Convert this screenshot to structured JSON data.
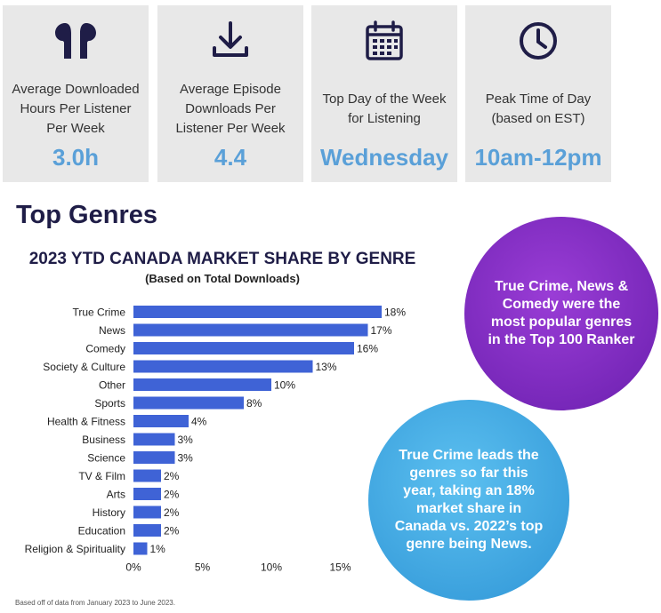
{
  "stats": [
    {
      "icon": "earbuds-icon",
      "label": "Average Downloaded Hours Per Listener Per Week",
      "value": "3.0h"
    },
    {
      "icon": "download-icon",
      "label": "Average Episode Downloads Per Listener Per Week",
      "value": "4.4"
    },
    {
      "icon": "calendar-icon",
      "label": "Top Day of the Week for Listening",
      "value": "Wednesday"
    },
    {
      "icon": "clock-icon",
      "label": "Peak Time of Day (based on EST)",
      "value": "10am-12pm"
    }
  ],
  "section_title": "Top Genres",
  "chart_data": {
    "type": "bar",
    "orientation": "horizontal",
    "title": "2023 YTD CANADA MARKET SHARE BY GENRE",
    "subtitle": "(Based on Total Downloads)",
    "categories": [
      "True Crime",
      "News",
      "Comedy",
      "Society & Culture",
      "Other",
      "Sports",
      "Health & Fitness",
      "Business",
      "Science",
      "TV & Film",
      "Arts",
      "History",
      "Education",
      "Religion & Spirituality"
    ],
    "values": [
      18,
      17,
      16,
      13,
      10,
      8,
      4,
      3,
      3,
      2,
      2,
      2,
      2,
      1
    ],
    "data_labels": [
      "18%",
      "17%",
      "16%",
      "13%",
      "10%",
      "8%",
      "4%",
      "3%",
      "3%",
      "2%",
      "2%",
      "2%",
      "2%",
      "1%"
    ],
    "xlim": [
      0,
      18
    ],
    "x_ticks": [
      0,
      5,
      10,
      15
    ],
    "x_tick_labels": [
      "0%",
      "5%",
      "10%",
      "15%"
    ],
    "grid": false,
    "bar_color": "#3f63d6"
  },
  "bubbles": {
    "purple": "True Crime, News & Comedy were the most popular genres in the Top 100 Ranker",
    "blue": "True Crime leads the genres so far this year, taking an 18% market share in Canada vs. 2022’s top genre being News."
  },
  "footnote": "Based off of data from January 2023 to June 2023.",
  "colors": {
    "icon": "#1f1d47",
    "value": "#5aa0d8",
    "heading": "#1f1d47",
    "purple": "#7a2bc0",
    "blue": "#3aa6e0"
  }
}
